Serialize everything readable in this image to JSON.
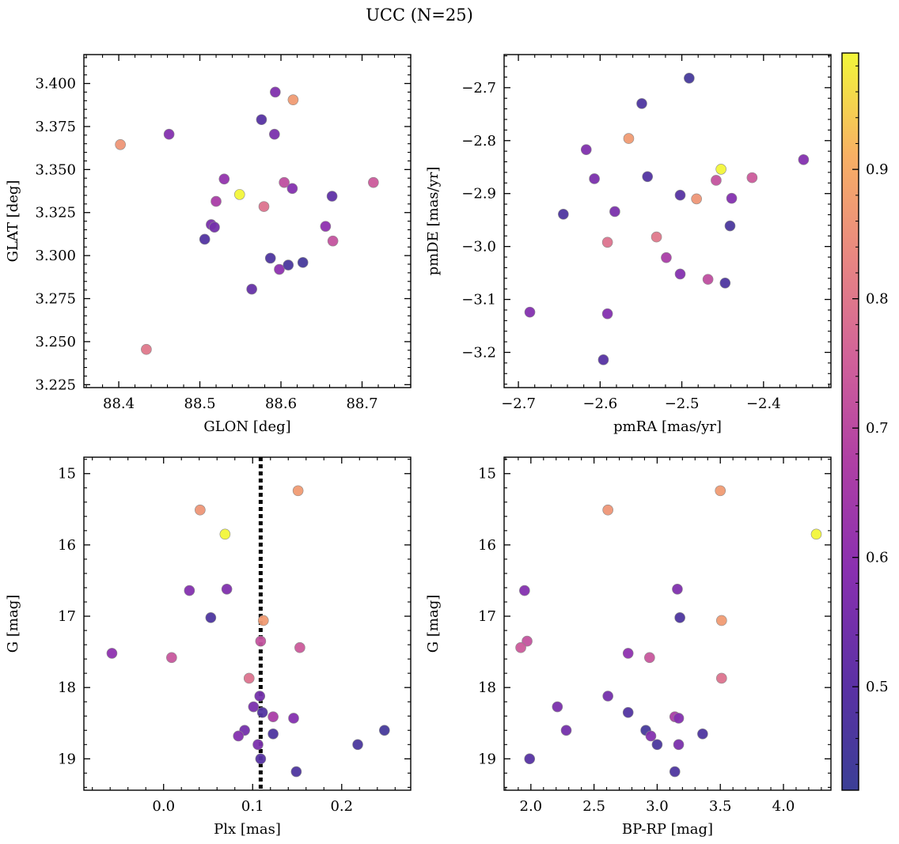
{
  "figure": {
    "title": "UCC (N=25)"
  },
  "chart_data": [
    {
      "id": "glon-glat",
      "type": "scatter",
      "xlabel": "GLON [deg]",
      "ylabel": "GLAT [deg]",
      "xlim": [
        88.357,
        88.76
      ],
      "ylim": [
        3.2233,
        3.4168
      ],
      "y_inverted": false,
      "xticks": [
        88.4,
        88.5,
        88.6,
        88.7
      ],
      "xtick_labels": [
        "88.4",
        "88.5",
        "88.6",
        "88.7"
      ],
      "yticks": [
        3.225,
        3.25,
        3.275,
        3.3,
        3.325,
        3.35,
        3.375,
        3.4
      ],
      "ytick_labels": [
        "3.225",
        "3.250",
        "3.275",
        "3.300",
        "3.325",
        "3.350",
        "3.375",
        "3.400"
      ],
      "points": [
        {
          "x": 88.615,
          "y": 3.3905,
          "c": 0.87
        },
        {
          "x": 88.402,
          "y": 3.3645,
          "c": 0.86
        },
        {
          "x": 88.549,
          "y": 3.3355,
          "c": 0.99
        },
        {
          "x": 88.579,
          "y": 3.3285,
          "c": 0.79
        },
        {
          "x": 88.714,
          "y": 3.3425,
          "c": 0.74
        },
        {
          "x": 88.434,
          "y": 3.2455,
          "c": 0.8
        },
        {
          "x": 88.664,
          "y": 3.3085,
          "c": 0.72
        },
        {
          "x": 88.604,
          "y": 3.3425,
          "c": 0.71
        },
        {
          "x": 88.52,
          "y": 3.3315,
          "c": 0.66
        },
        {
          "x": 88.53,
          "y": 3.3445,
          "c": 0.61
        },
        {
          "x": 88.655,
          "y": 3.317,
          "c": 0.6
        },
        {
          "x": 88.593,
          "y": 3.395,
          "c": 0.57
        },
        {
          "x": 88.462,
          "y": 3.3705,
          "c": 0.58
        },
        {
          "x": 88.598,
          "y": 3.292,
          "c": 0.6
        },
        {
          "x": 88.614,
          "y": 3.339,
          "c": 0.58
        },
        {
          "x": 88.592,
          "y": 3.3705,
          "c": 0.56
        },
        {
          "x": 88.514,
          "y": 3.318,
          "c": 0.56
        },
        {
          "x": 88.518,
          "y": 3.3165,
          "c": 0.55
        },
        {
          "x": 88.564,
          "y": 3.2805,
          "c": 0.52
        },
        {
          "x": 88.663,
          "y": 3.3345,
          "c": 0.51
        },
        {
          "x": 88.576,
          "y": 3.379,
          "c": 0.49
        },
        {
          "x": 88.506,
          "y": 3.3095,
          "c": 0.48
        },
        {
          "x": 88.587,
          "y": 3.2985,
          "c": 0.47
        },
        {
          "x": 88.609,
          "y": 3.2945,
          "c": 0.46
        },
        {
          "x": 88.627,
          "y": 3.296,
          "c": 0.45
        }
      ]
    },
    {
      "id": "pmra-pmde",
      "type": "scatter",
      "xlabel": "pmRA [mas/yr]",
      "ylabel": "pmDE [mas/yr]",
      "xlim": [
        -2.7175,
        -2.3175
      ],
      "ylim": [
        -3.2665,
        -2.6375
      ],
      "y_inverted": false,
      "xticks": [
        -2.7,
        -2.6,
        -2.5,
        -2.4
      ],
      "xtick_labels": [
        "−2.7",
        "−2.6",
        "−2.5",
        "−2.4"
      ],
      "yticks": [
        -3.2,
        -3.1,
        -3.0,
        -2.9,
        -2.8,
        -2.7
      ],
      "ytick_labels": [
        "−3.2",
        "−3.1",
        "−3.0",
        "−2.9",
        "−2.8",
        "−2.7"
      ],
      "points": [
        {
          "x": -2.491,
          "y": -2.682,
          "c": 0.45
        },
        {
          "x": -2.549,
          "y": -2.73,
          "c": 0.47
        },
        {
          "x": -2.565,
          "y": -2.796,
          "c": 0.87
        },
        {
          "x": -2.617,
          "y": -2.817,
          "c": 0.57
        },
        {
          "x": -2.452,
          "y": -2.854,
          "c": 0.99
        },
        {
          "x": -2.351,
          "y": -2.836,
          "c": 0.58
        },
        {
          "x": -2.542,
          "y": -2.868,
          "c": 0.48
        },
        {
          "x": -2.607,
          "y": -2.872,
          "c": 0.56
        },
        {
          "x": -2.414,
          "y": -2.87,
          "c": 0.74
        },
        {
          "x": -2.458,
          "y": -2.875,
          "c": 0.72
        },
        {
          "x": -2.502,
          "y": -2.903,
          "c": 0.49
        },
        {
          "x": -2.482,
          "y": -2.91,
          "c": 0.86
        },
        {
          "x": -2.439,
          "y": -2.909,
          "c": 0.58
        },
        {
          "x": -2.582,
          "y": -2.934,
          "c": 0.56
        },
        {
          "x": -2.645,
          "y": -2.939,
          "c": 0.47
        },
        {
          "x": -2.441,
          "y": -2.961,
          "c": 0.46
        },
        {
          "x": -2.531,
          "y": -2.982,
          "c": 0.8
        },
        {
          "x": -2.591,
          "y": -2.992,
          "c": 0.79
        },
        {
          "x": -2.519,
          "y": -3.021,
          "c": 0.66
        },
        {
          "x": -2.502,
          "y": -3.052,
          "c": 0.58
        },
        {
          "x": -2.468,
          "y": -3.062,
          "c": 0.71
        },
        {
          "x": -2.447,
          "y": -3.069,
          "c": 0.47
        },
        {
          "x": -2.686,
          "y": -3.124,
          "c": 0.58
        },
        {
          "x": -2.591,
          "y": -3.127,
          "c": 0.58
        },
        {
          "x": -2.596,
          "y": -3.214,
          "c": 0.49
        }
      ]
    },
    {
      "id": "plx-g",
      "type": "scatter",
      "xlabel": "Plx [mas]",
      "ylabel": "G [mag]",
      "xlim": [
        -0.0895,
        0.2775
      ],
      "ylim": [
        19.44,
        14.77
      ],
      "y_inverted": true,
      "xticks": [
        0.0,
        0.1,
        0.2
      ],
      "xtick_labels": [
        "0.0",
        "0.1",
        "0.2"
      ],
      "yticks": [
        15,
        16,
        17,
        18,
        19
      ],
      "ytick_labels": [
        "15",
        "16",
        "17",
        "18",
        "19"
      ],
      "vline": {
        "x": 0.109,
        "style": "dotted",
        "color": "#000000"
      },
      "points": [
        {
          "x": 0.151,
          "y": 15.24,
          "c": 0.87
        },
        {
          "x": 0.041,
          "y": 15.51,
          "c": 0.86
        },
        {
          "x": 0.069,
          "y": 15.85,
          "c": 0.99
        },
        {
          "x": 0.029,
          "y": 16.64,
          "c": 0.58
        },
        {
          "x": 0.071,
          "y": 16.62,
          "c": 0.57
        },
        {
          "x": 0.053,
          "y": 17.02,
          "c": 0.47
        },
        {
          "x": 0.112,
          "y": 17.06,
          "c": 0.87
        },
        {
          "x": 0.109,
          "y": 17.35,
          "c": 0.72
        },
        {
          "x": 0.153,
          "y": 17.44,
          "c": 0.74
        },
        {
          "x": -0.058,
          "y": 17.52,
          "c": 0.6
        },
        {
          "x": 0.009,
          "y": 17.58,
          "c": 0.73
        },
        {
          "x": 0.096,
          "y": 17.87,
          "c": 0.79
        },
        {
          "x": 0.108,
          "y": 18.12,
          "c": 0.55
        },
        {
          "x": 0.101,
          "y": 18.27,
          "c": 0.56
        },
        {
          "x": 0.111,
          "y": 18.35,
          "c": 0.48
        },
        {
          "x": 0.123,
          "y": 18.41,
          "c": 0.66
        },
        {
          "x": 0.146,
          "y": 18.43,
          "c": 0.58
        },
        {
          "x": 0.091,
          "y": 18.6,
          "c": 0.55
        },
        {
          "x": 0.123,
          "y": 18.65,
          "c": 0.47
        },
        {
          "x": 0.084,
          "y": 18.68,
          "c": 0.58
        },
        {
          "x": 0.106,
          "y": 18.8,
          "c": 0.56
        },
        {
          "x": 0.218,
          "y": 18.8,
          "c": 0.46
        },
        {
          "x": 0.248,
          "y": 18.6,
          "c": 0.45
        },
        {
          "x": 0.109,
          "y": 19.0,
          "c": 0.49
        },
        {
          "x": 0.149,
          "y": 19.18,
          "c": 0.47
        }
      ]
    },
    {
      "id": "bprp-g",
      "type": "scatter",
      "xlabel": "BP-RP [mag]",
      "ylabel": "G [mag]",
      "xlim": [
        1.788,
        4.376
      ],
      "ylim": [
        19.44,
        14.77
      ],
      "y_inverted": true,
      "xticks": [
        2.0,
        2.5,
        3.0,
        3.5,
        4.0
      ],
      "xtick_labels": [
        "2.0",
        "2.5",
        "3.0",
        "3.5",
        "4.0"
      ],
      "yticks": [
        15,
        16,
        17,
        18,
        19
      ],
      "ytick_labels": [
        "15",
        "16",
        "17",
        "18",
        "19"
      ],
      "points": [
        {
          "x": 3.5,
          "y": 15.24,
          "c": 0.87
        },
        {
          "x": 2.61,
          "y": 15.51,
          "c": 0.86
        },
        {
          "x": 4.26,
          "y": 15.85,
          "c": 0.99
        },
        {
          "x": 1.95,
          "y": 16.64,
          "c": 0.58
        },
        {
          "x": 3.16,
          "y": 16.62,
          "c": 0.57
        },
        {
          "x": 3.18,
          "y": 17.02,
          "c": 0.47
        },
        {
          "x": 3.51,
          "y": 17.06,
          "c": 0.87
        },
        {
          "x": 1.97,
          "y": 17.35,
          "c": 0.72
        },
        {
          "x": 1.92,
          "y": 17.44,
          "c": 0.74
        },
        {
          "x": 2.77,
          "y": 17.52,
          "c": 0.6
        },
        {
          "x": 2.94,
          "y": 17.58,
          "c": 0.73
        },
        {
          "x": 3.51,
          "y": 17.87,
          "c": 0.79
        },
        {
          "x": 2.61,
          "y": 18.12,
          "c": 0.55
        },
        {
          "x": 2.21,
          "y": 18.27,
          "c": 0.56
        },
        {
          "x": 2.77,
          "y": 18.35,
          "c": 0.48
        },
        {
          "x": 3.14,
          "y": 18.41,
          "c": 0.66
        },
        {
          "x": 3.17,
          "y": 18.43,
          "c": 0.58
        },
        {
          "x": 2.28,
          "y": 18.6,
          "c": 0.55
        },
        {
          "x": 2.91,
          "y": 18.6,
          "c": 0.45
        },
        {
          "x": 3.36,
          "y": 18.65,
          "c": 0.47
        },
        {
          "x": 2.95,
          "y": 18.68,
          "c": 0.58
        },
        {
          "x": 3.0,
          "y": 18.8,
          "c": 0.46
        },
        {
          "x": 3.17,
          "y": 18.8,
          "c": 0.56
        },
        {
          "x": 1.99,
          "y": 19.0,
          "c": 0.49
        },
        {
          "x": 3.14,
          "y": 19.18,
          "c": 0.47
        }
      ]
    }
  ],
  "colorbar": {
    "colormap": "plasma",
    "range": [
      0.42,
      0.99
    ],
    "ticks": [
      0.5,
      0.6,
      0.7,
      0.8,
      0.9
    ],
    "tick_labels": [
      "0.5",
      "0.6",
      "0.7",
      "0.8",
      "0.9"
    ]
  }
}
